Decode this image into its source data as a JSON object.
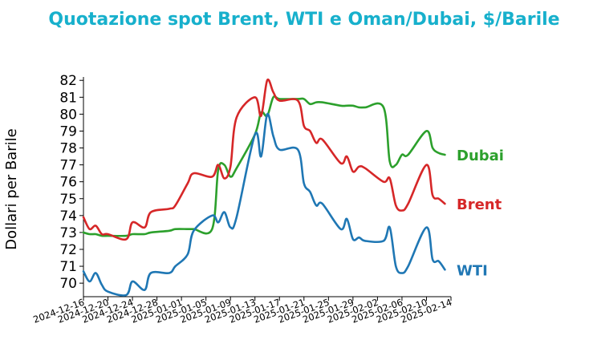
{
  "chart_data": {
    "type": "line",
    "title": "Quotazione spot Brent, WTI e Oman/Dubai, $/Barile",
    "xlabel": "",
    "ylabel": "Dollari per Barile",
    "ylim": [
      69.2,
      82.2
    ],
    "yticks": [
      "70",
      "71",
      "72",
      "73",
      "74",
      "75",
      "76",
      "77",
      "78",
      "79",
      "80",
      "81",
      "82"
    ],
    "xlim": [
      "2024-12-16",
      "2025-02-14"
    ],
    "xticks": [
      "2024-12-16",
      "2024-12-20",
      "2024-12-24",
      "2024-12-28",
      "2025-01-01",
      "2025-01-05",
      "2025-01-09",
      "2025-01-13",
      "2025-01-17",
      "2025-01-21",
      "2025-01-25",
      "2025-01-29",
      "2025-02-02",
      "2025-02-06",
      "2025-02-10",
      "2025-02-14"
    ],
    "grid": false,
    "legend": "inline-right",
    "series": [
      {
        "name": "Dubai",
        "color": "#2ca02c",
        "x": [
          "2024-12-16",
          "2024-12-17",
          "2024-12-18",
          "2024-12-19",
          "2024-12-20",
          "2024-12-23",
          "2024-12-24",
          "2024-12-26",
          "2024-12-27",
          "2024-12-30",
          "2024-12-31",
          "2025-01-02",
          "2025-01-03",
          "2025-01-06",
          "2025-01-07",
          "2025-01-08",
          "2025-01-09",
          "2025-01-10",
          "2025-01-13",
          "2025-01-14",
          "2025-01-15",
          "2025-01-16",
          "2025-01-17",
          "2025-01-20",
          "2025-01-21",
          "2025-01-22",
          "2025-01-23",
          "2025-01-24",
          "2025-01-27",
          "2025-01-28",
          "2025-01-29",
          "2025-01-30",
          "2025-01-31",
          "2025-02-03",
          "2025-02-04",
          "2025-02-05",
          "2025-02-06",
          "2025-02-07",
          "2025-02-10",
          "2025-02-11",
          "2025-02-12",
          "2025-02-13"
        ],
        "y": [
          73.0,
          72.9,
          72.9,
          72.8,
          72.8,
          72.8,
          72.9,
          72.9,
          73.0,
          73.1,
          73.2,
          73.2,
          73.2,
          73.2,
          76.7,
          77.0,
          76.3,
          76.8,
          78.8,
          80.1,
          79.9,
          81.0,
          80.9,
          80.9,
          80.9,
          80.6,
          80.7,
          80.7,
          80.5,
          80.5,
          80.5,
          80.4,
          80.4,
          80.4,
          77.2,
          77.0,
          77.6,
          77.6,
          79.0,
          78.0,
          77.7,
          77.6
        ]
      },
      {
        "name": "Brent",
        "color": "#d62728",
        "x": [
          "2024-12-16",
          "2024-12-17",
          "2024-12-18",
          "2024-12-19",
          "2024-12-20",
          "2024-12-23",
          "2024-12-24",
          "2024-12-26",
          "2024-12-27",
          "2024-12-30",
          "2024-12-31",
          "2025-01-02",
          "2025-01-03",
          "2025-01-06",
          "2025-01-07",
          "2025-01-08",
          "2025-01-09",
          "2025-01-10",
          "2025-01-13",
          "2025-01-14",
          "2025-01-15",
          "2025-01-16",
          "2025-01-17",
          "2025-01-20",
          "2025-01-21",
          "2025-01-22",
          "2025-01-23",
          "2025-01-24",
          "2025-01-27",
          "2025-01-28",
          "2025-01-29",
          "2025-01-30",
          "2025-01-31",
          "2025-02-03",
          "2025-02-04",
          "2025-02-05",
          "2025-02-06",
          "2025-02-07",
          "2025-02-10",
          "2025-02-11",
          "2025-02-12",
          "2025-02-13"
        ],
        "y": [
          73.9,
          73.2,
          73.4,
          72.9,
          72.9,
          72.6,
          73.6,
          73.3,
          74.2,
          74.4,
          74.6,
          75.9,
          76.5,
          76.3,
          77.0,
          76.2,
          76.9,
          79.8,
          81.0,
          79.9,
          82.0,
          81.3,
          80.8,
          80.8,
          79.3,
          79.0,
          78.3,
          78.5,
          77.1,
          77.5,
          76.6,
          76.9,
          76.8,
          76.0,
          76.2,
          74.6,
          74.3,
          74.7,
          77.0,
          75.2,
          75.0,
          74.7
        ]
      },
      {
        "name": "WTI",
        "color": "#1f77b4",
        "x": [
          "2024-12-16",
          "2024-12-17",
          "2024-12-18",
          "2024-12-19",
          "2024-12-20",
          "2024-12-23",
          "2024-12-24",
          "2024-12-26",
          "2024-12-27",
          "2024-12-30",
          "2024-12-31",
          "2025-01-02",
          "2025-01-03",
          "2025-01-06",
          "2025-01-07",
          "2025-01-08",
          "2025-01-09",
          "2025-01-10",
          "2025-01-13",
          "2025-01-14",
          "2025-01-15",
          "2025-01-16",
          "2025-01-17",
          "2025-01-20",
          "2025-01-21",
          "2025-01-22",
          "2025-01-23",
          "2025-01-24",
          "2025-01-27",
          "2025-01-28",
          "2025-01-29",
          "2025-01-30",
          "2025-01-31",
          "2025-02-03",
          "2025-02-04",
          "2025-02-05",
          "2025-02-06",
          "2025-02-07",
          "2025-02-10",
          "2025-02-11",
          "2025-02-12",
          "2025-02-13"
        ],
        "y": [
          70.7,
          70.1,
          70.6,
          69.9,
          69.5,
          69.3,
          70.1,
          69.6,
          70.6,
          70.6,
          71.0,
          71.7,
          73.1,
          74.0,
          73.6,
          74.2,
          73.3,
          73.9,
          78.8,
          77.5,
          80.0,
          78.7,
          77.9,
          77.9,
          75.9,
          75.4,
          74.6,
          74.7,
          73.2,
          73.8,
          72.6,
          72.7,
          72.5,
          72.5,
          73.3,
          71.0,
          70.6,
          71.0,
          73.3,
          71.4,
          71.3,
          70.8
        ]
      }
    ]
  }
}
